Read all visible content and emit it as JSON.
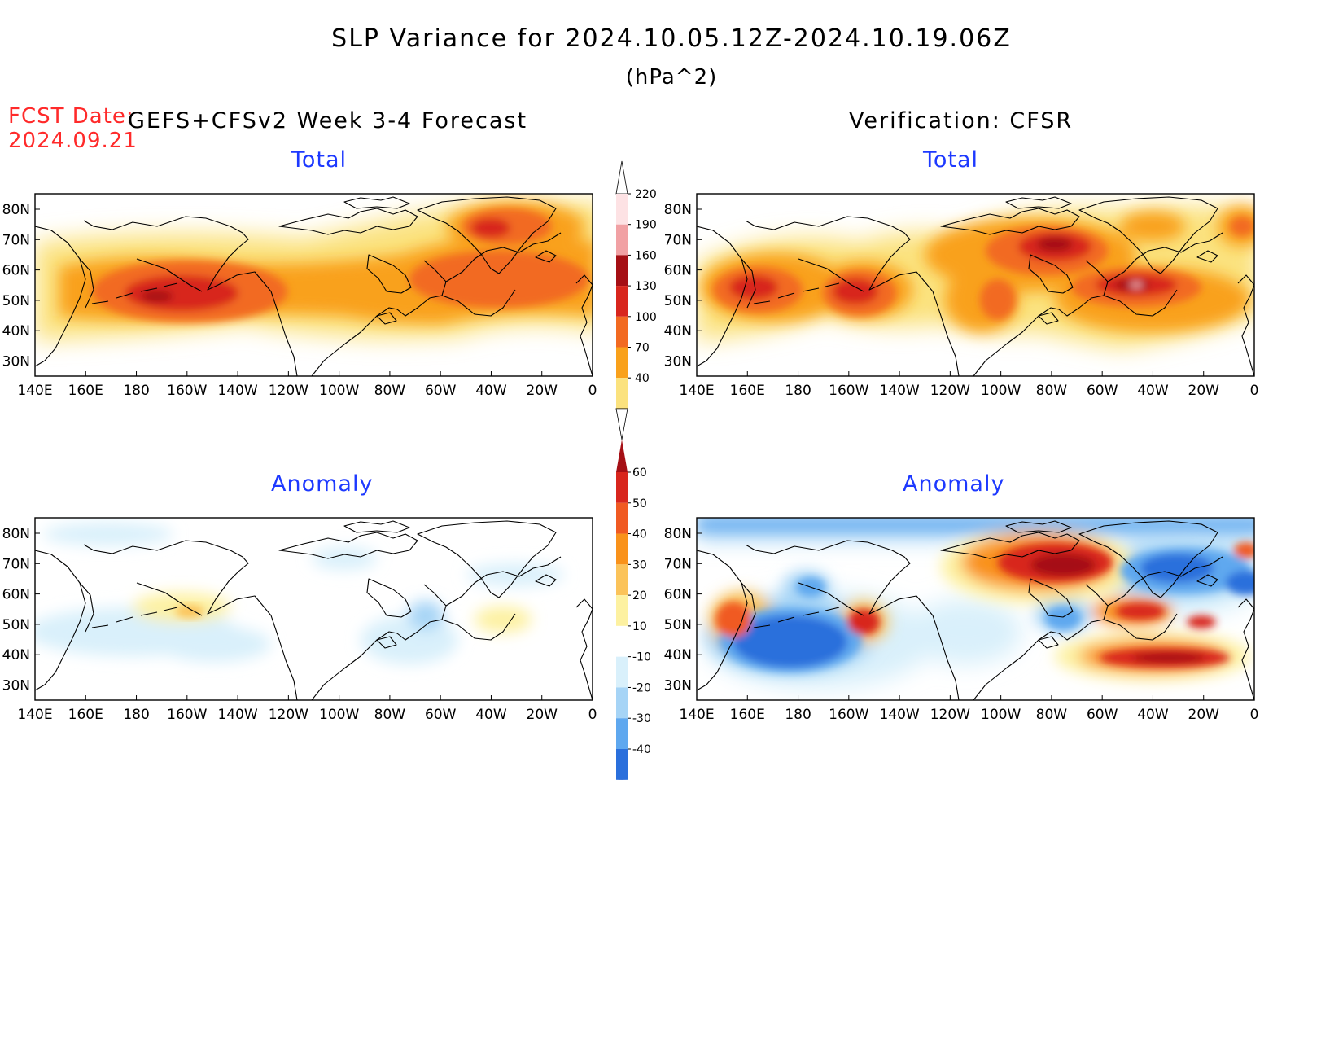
{
  "title": "SLP Variance for 2024.10.05.12Z-2024.10.19.06Z",
  "units": "(hPa^2)",
  "fcst_date_label": "FCST Date:",
  "fcst_date_value": "2024.09.21",
  "left_header": "GEFS+CFSv2 Week 3-4 Forecast",
  "right_header": "Verification: CFSR",
  "panels": {
    "top_left_label": "Total",
    "top_right_label": "Total",
    "bottom_left_label": "Anomaly",
    "bottom_right_label": "Anomaly"
  },
  "axes": {
    "lon_ticks": [
      "140E",
      "160E",
      "180",
      "160W",
      "140W",
      "120W",
      "100W",
      "80W",
      "60W",
      "40W",
      "20W",
      "0"
    ],
    "lat_ticks": [
      "80N",
      "70N",
      "60N",
      "50N",
      "40N",
      "30N"
    ]
  },
  "total_colorbar": {
    "levels": [
      "220",
      "190",
      "160",
      "130",
      "100",
      "70",
      "40"
    ],
    "colors": [
      "#fde2e4",
      "#f1a1a4",
      "#a50f15",
      "#d8261d",
      "#f26a21",
      "#f9a11b",
      "#fbe27e"
    ]
  },
  "anomaly_colorbar": {
    "levels": [
      "60",
      "50",
      "40",
      "30",
      "20",
      "10",
      "-10",
      "-20",
      "-30",
      "-40"
    ],
    "colors": [
      "#a50f15",
      "#d8261d",
      "#f05a22",
      "#f9921b",
      "#fbc35a",
      "#fdf1a1",
      "#ffffff",
      "#d9f0fb",
      "#a6d4f6",
      "#5fa8ef",
      "#2a6fdc",
      "#1245b8"
    ]
  }
}
